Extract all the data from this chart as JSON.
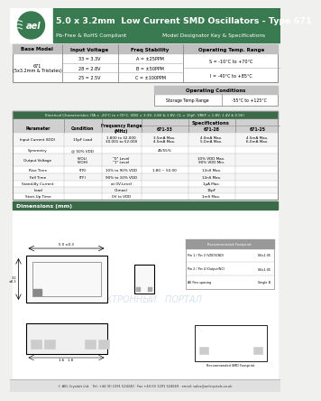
{
  "title": "5.0 x 3.2mm  Low Current SMD Oscillators - Type 671",
  "subtitle1": "Pb-Free & RoHS Compliant",
  "subtitle2": "Model Designator Key & Specifications",
  "header_bg": "#3a7a50",
  "table1_headers": [
    "Base Model",
    "Input Voltage",
    "Freq Stability",
    "Operating Temp. Range"
  ],
  "table1_col2": [
    "33 = 3.3V",
    "28 = 2.8V",
    "25 = 2.5V"
  ],
  "table1_col3": [
    "A = ±25PPM",
    "B = ±50PPM",
    "C = ±100PPM"
  ],
  "table1_col4": [
    "S = -10°C to +70°C",
    "I = -40°C to +85°C"
  ],
  "opcond_title": "Operating Conditions",
  "opcond_row": [
    "Storage Temp Range",
    "-55°C to +125°C"
  ],
  "elec_title": "Electrical Characteristics (TA = -20°C to +70°C, VDD = 3.3V, 2.8V & 1.8V, CL = 15pF, VREF = 1.8V, 1.4V & 0.9V)",
  "elec_col_headers": [
    "Parameter",
    "Condition",
    "Frequency Range\n(MHz)",
    "671-33",
    "671-28",
    "671-25"
  ],
  "dim_title": "Dimensions (mm)",
  "watermark": "ЭЛЕКТРОННЫЙ   ПОРТАЛ",
  "footer_text": "© AEL Crystals Ltd.   Tel: +44 (0) 1291 524240 · Fax +44 (0) 1291 524669 · email: sales@aelcrystals.co.uk",
  "bg_color": "#f0f0ee",
  "elec_rows": [
    [
      "Input Current (IDD)",
      "15pF Load",
      "1.800 to 32.000\n30.001 to 52.000",
      "3.5mA Max.\n4.5mA Max.",
      "4.0mA Max.\n5.0mA Max.",
      "4.5mA Max.\n6.0mA Max."
    ],
    [
      "Symmetry",
      "@ 50% VDD",
      "",
      "45/55%",
      "",
      ""
    ],
    [
      "Output Voltage",
      "(VOL)\n(VOH)",
      "\"0\" Level\n\"1\" Level",
      "",
      "10% VDD Max.\n90% VDD Min.",
      ""
    ],
    [
      "Rise Time",
      "(TR)",
      "10% to 90% VDD",
      "1.80 ~ 50.00",
      "12nS Max.",
      ""
    ],
    [
      "Fall Time",
      "(TF)",
      "90% to 10% VDD",
      "",
      "12nS Max.",
      ""
    ],
    [
      "Stand-By Current",
      "",
      "at 0V-Level",
      "",
      "1μA Max.",
      ""
    ],
    [
      "Load",
      "",
      "C(max)",
      "",
      "15pF",
      ""
    ],
    [
      "Start-Up Time",
      "",
      "0V to VDD",
      "",
      "1mS Max.",
      ""
    ]
  ],
  "elec_row_heights": [
    16,
    8,
    14,
    8,
    8,
    7,
    7,
    7
  ]
}
